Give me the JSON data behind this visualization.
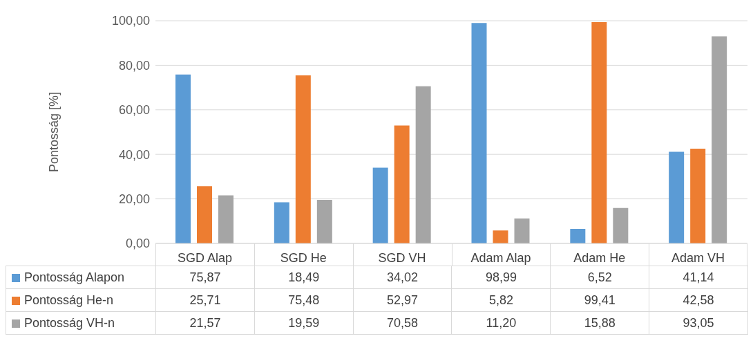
{
  "chart_data": {
    "type": "bar",
    "ylabel": "Pontosság [%]",
    "categories": [
      "SGD Alap",
      "SGD He",
      "SGD VH",
      "Adam Alap",
      "Adam He",
      "Adam VH"
    ],
    "series": [
      {
        "name": "Pontosság Alapon",
        "color": "#5b9bd5",
        "values": [
          75.87,
          18.49,
          34.02,
          98.99,
          6.52,
          41.14
        ],
        "value_labels": [
          "75,87",
          "18,49",
          "34,02",
          "98,99",
          "6,52",
          "41,14"
        ]
      },
      {
        "name": "Pontosság He-n",
        "color": "#ed7d31",
        "values": [
          25.71,
          75.48,
          52.97,
          5.82,
          99.41,
          42.58
        ],
        "value_labels": [
          "25,71",
          "75,48",
          "52,97",
          "5,82",
          "99,41",
          "42,58"
        ]
      },
      {
        "name": "Pontosság VH-n",
        "color": "#a5a5a5",
        "values": [
          21.57,
          19.59,
          70.58,
          11.2,
          15.88,
          93.05
        ],
        "value_labels": [
          "21,57",
          "19,59",
          "70,58",
          "11,20",
          "15,88",
          "93,05"
        ]
      }
    ],
    "ylim": [
      0,
      100
    ],
    "yticks": [
      {
        "value": 0,
        "label": "0,00"
      },
      {
        "value": 20,
        "label": "20,00"
      },
      {
        "value": 40,
        "label": "40,00"
      },
      {
        "value": 60,
        "label": "60,00"
      },
      {
        "value": 80,
        "label": "80,00"
      },
      {
        "value": 100,
        "label": "100,00"
      }
    ],
    "grid": "y",
    "legend": "bottom"
  }
}
